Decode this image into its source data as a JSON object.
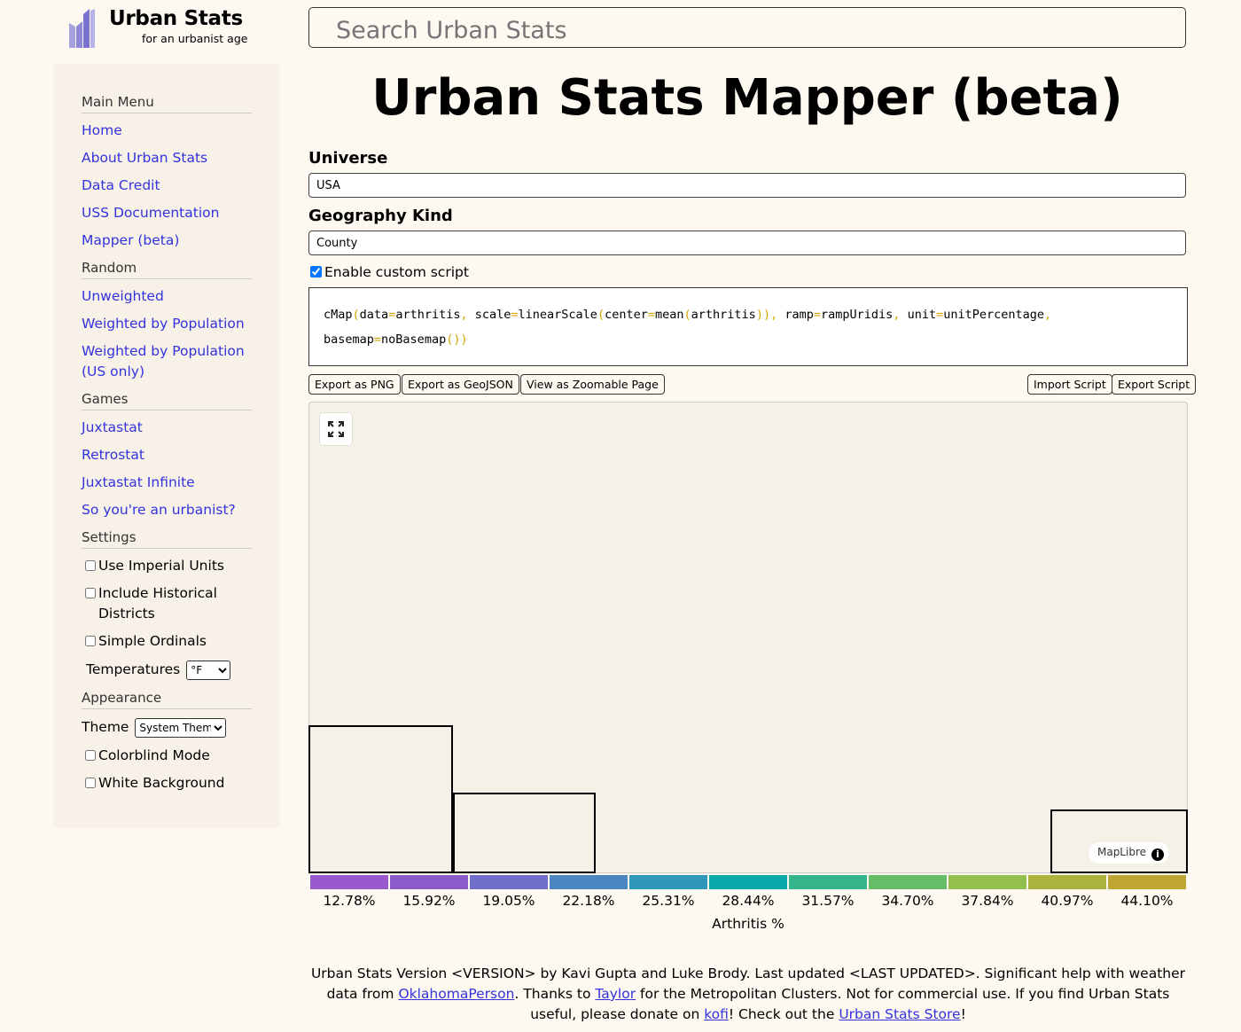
{
  "logo": {
    "title": "Urban Stats",
    "subtitle": "for an urbanist age"
  },
  "search": {
    "placeholder": "Search Urban Stats"
  },
  "sidebar": {
    "main_menu_header": "Main Menu",
    "main_menu": [
      "Home",
      "About Urban Stats",
      "Data Credit",
      "USS Documentation",
      "Mapper (beta)"
    ],
    "random_header": "Random",
    "random": [
      "Unweighted",
      "Weighted by Population",
      "Weighted by Population (US only)"
    ],
    "games_header": "Games",
    "games": [
      "Juxtastat",
      "Retrostat",
      "Juxtastat Infinite",
      "So you're an urbanist?"
    ],
    "settings_header": "Settings",
    "settings": {
      "imperial": "Use Imperial Units",
      "historical": "Include Historical Districts",
      "ordinals": "Simple Ordinals",
      "temperatures_label": "Temperatures",
      "temperatures_value": "°F"
    },
    "appearance_header": "Appearance",
    "appearance": {
      "theme_label": "Theme",
      "theme_value": "System Theme",
      "colorblind": "Colorblind Mode",
      "white_bg": "White Background"
    }
  },
  "main": {
    "title": "Urban Stats Mapper (beta)",
    "universe_label": "Universe",
    "universe_value": "USA",
    "geography_label": "Geography Kind",
    "geography_value": "County",
    "enable_script_label": "Enable custom script",
    "script": {
      "line1": [
        [
          "id",
          "cMap"
        ],
        [
          "p",
          "("
        ],
        [
          "id",
          "data"
        ],
        [
          "p",
          "="
        ],
        [
          "id",
          "arthritis"
        ],
        [
          "p",
          ","
        ],
        [
          "id",
          " scale"
        ],
        [
          "p",
          "="
        ],
        [
          "id",
          "linearScale"
        ],
        [
          "p",
          "("
        ],
        [
          "id",
          "center"
        ],
        [
          "p",
          "="
        ],
        [
          "id",
          "mean"
        ],
        [
          "p",
          "("
        ],
        [
          "id",
          "arthritis"
        ],
        [
          "p",
          ")"
        ],
        [
          "p",
          ")"
        ],
        [
          "p",
          ","
        ],
        [
          "id",
          " ramp"
        ],
        [
          "p",
          "="
        ],
        [
          "id",
          "rampUridis"
        ],
        [
          "p",
          ","
        ],
        [
          "id",
          " unit"
        ],
        [
          "p",
          "="
        ],
        [
          "id",
          "unitPercentage"
        ],
        [
          "p",
          ","
        ]
      ],
      "line2": [
        [
          "id",
          "basemap"
        ],
        [
          "p",
          "="
        ],
        [
          "id",
          "noBasemap"
        ],
        [
          "p",
          "("
        ],
        [
          "p",
          ")"
        ],
        [
          "p",
          ")"
        ]
      ]
    },
    "buttons": {
      "export_png": "Export as PNG",
      "export_geojson": "Export as GeoJSON",
      "zoomable": "View as Zoomable Page",
      "import_script": "Import Script",
      "export_script": "Export Script"
    },
    "map_attribution": "MapLibre",
    "legend": {
      "label": "Arthritis %",
      "ticks": [
        "12.78%",
        "15.92%",
        "19.05%",
        "22.18%",
        "25.31%",
        "28.44%",
        "31.57%",
        "34.70%",
        "37.84%",
        "40.97%",
        "44.10%"
      ],
      "colors": [
        "#9b59d0",
        "#8a5cc9",
        "#6f6ec9",
        "#4a86c0",
        "#2f98b8",
        "#0aa9a9",
        "#33b48a",
        "#66bd68",
        "#93bf4e",
        "#aab43c",
        "#bfa532"
      ]
    }
  },
  "footer": {
    "t1": "Urban Stats Version <VERSION> by Kavi Gupta and Luke Brody. Last updated <LAST UPDATED>. Significant help with weather data from ",
    "link1": "OklahomaPerson",
    "t2": ". Thanks to ",
    "link2": "Taylor",
    "t3": " for the Metropolitan Clusters. Not for commercial use. If you find Urban Stats useful, please donate on ",
    "link3": "kofi",
    "t4": "! Check out the ",
    "link4": "Urban Stats Store",
    "t5": "!"
  }
}
